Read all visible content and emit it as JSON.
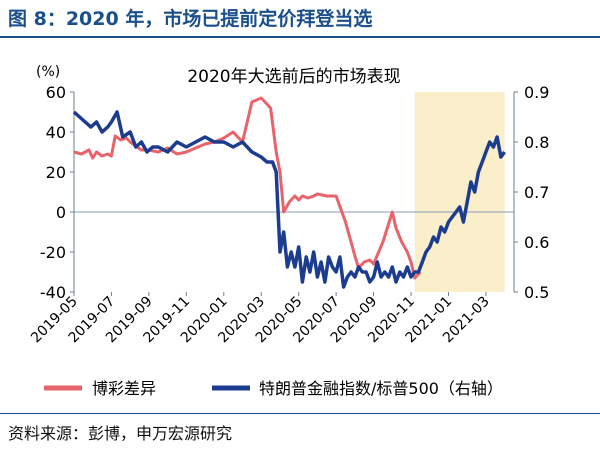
{
  "figure": {
    "title": "图 8：2020 年，市场已提前定价拜登当选",
    "source": "资料来源：彭博，申万宏源研究"
  },
  "colors": {
    "series1": "#e8646a",
    "series2": "#1c3d8f",
    "highlight": "#fbeecb",
    "title": "#1a4f8c"
  },
  "chart_data": {
    "type": "line",
    "title": "2020年大选前后的市场表现",
    "y_left_unit": "(%)",
    "y_left_range": [
      -40,
      60
    ],
    "y_left_ticks": [
      "60",
      "40",
      "20",
      "0",
      "-20",
      "-40"
    ],
    "y_right_range": [
      0.5,
      0.9
    ],
    "y_right_ticks": [
      "0.9",
      "0.8",
      "0.7",
      "0.6",
      "0.5"
    ],
    "x_range": [
      0,
      23.5
    ],
    "x_tick_labels": [
      "2019-05",
      "2019-07",
      "2019-09",
      "2019-11",
      "2020-01",
      "2020-03",
      "2020-05",
      "2020-07",
      "2020-09",
      "2020-11",
      "2021-01",
      "2021-03"
    ],
    "highlight_region": {
      "from": 18.2,
      "to": 23.0,
      "label": ""
    },
    "legend_position": "bottom",
    "series": [
      {
        "name": "博彩差异",
        "axis": "left",
        "x": [
          0,
          0.4,
          0.8,
          1.0,
          1.2,
          1.5,
          1.8,
          2.0,
          2.2,
          2.5,
          2.8,
          3.0,
          3.3,
          3.6,
          4.0,
          4.5,
          5.0,
          5.5,
          6.0,
          6.5,
          7.0,
          7.5,
          8.0,
          8.5,
          9.0,
          9.5,
          10.0,
          10.5,
          10.8,
          11.0,
          11.2,
          11.5,
          11.8,
          12.0,
          12.2,
          12.5,
          12.8,
          13.0,
          13.5,
          14.0,
          14.5,
          15.0,
          15.2,
          15.5,
          15.8,
          16.0,
          16.5,
          17.0,
          17.2,
          17.5,
          17.8,
          18.0,
          18.2,
          18.5
        ],
        "values": [
          30,
          29,
          31,
          27,
          30,
          28,
          29,
          28,
          38,
          36,
          37,
          35,
          33,
          31,
          31,
          30,
          32,
          29,
          30,
          32,
          34,
          35,
          37,
          40,
          35,
          55,
          57,
          52,
          30,
          20,
          0,
          5,
          8,
          6,
          8,
          7,
          8,
          9,
          8,
          8,
          -5,
          -22,
          -28,
          -25,
          -24,
          -26,
          -15,
          0,
          -8,
          -15,
          -20,
          -25,
          -33,
          -30
        ]
      },
      {
        "name": "特朗普金融指数/标普500（右轴）",
        "axis": "right",
        "x": [
          0,
          0.3,
          0.6,
          0.9,
          1.2,
          1.5,
          1.8,
          2.0,
          2.3,
          2.6,
          3.0,
          3.3,
          3.6,
          3.9,
          4.2,
          4.5,
          5.0,
          5.5,
          6.0,
          6.5,
          7.0,
          7.5,
          8.0,
          8.5,
          9.0,
          9.5,
          10.0,
          10.3,
          10.6,
          10.8,
          11.0,
          11.2,
          11.4,
          11.6,
          11.8,
          12.0,
          12.2,
          12.4,
          12.6,
          12.8,
          13.0,
          13.2,
          13.4,
          13.6,
          13.8,
          14.0,
          14.2,
          14.4,
          14.6,
          14.8,
          15.0,
          15.2,
          15.4,
          15.6,
          15.8,
          16.0,
          16.2,
          16.4,
          16.6,
          16.8,
          17.0,
          17.2,
          17.4,
          17.6,
          17.8,
          18.0,
          18.2,
          18.4,
          18.6,
          18.8,
          19.0,
          19.2,
          19.4,
          19.6,
          19.8,
          20.0,
          20.2,
          20.4,
          20.6,
          20.8,
          21.0,
          21.2,
          21.4,
          21.6,
          21.8,
          22.0,
          22.2,
          22.4,
          22.6,
          22.8,
          23.0
        ],
        "values": [
          0.86,
          0.85,
          0.84,
          0.83,
          0.84,
          0.82,
          0.83,
          0.84,
          0.86,
          0.81,
          0.82,
          0.79,
          0.8,
          0.78,
          0.79,
          0.79,
          0.78,
          0.8,
          0.79,
          0.8,
          0.81,
          0.8,
          0.8,
          0.79,
          0.8,
          0.78,
          0.77,
          0.76,
          0.76,
          0.74,
          0.58,
          0.62,
          0.55,
          0.58,
          0.55,
          0.59,
          0.52,
          0.57,
          0.54,
          0.58,
          0.53,
          0.56,
          0.52,
          0.57,
          0.55,
          0.54,
          0.57,
          0.51,
          0.53,
          0.54,
          0.53,
          0.55,
          0.54,
          0.54,
          0.52,
          0.53,
          0.56,
          0.53,
          0.54,
          0.53,
          0.55,
          0.52,
          0.54,
          0.53,
          0.55,
          0.53,
          0.54,
          0.54,
          0.56,
          0.58,
          0.59,
          0.61,
          0.6,
          0.63,
          0.62,
          0.64,
          0.65,
          0.66,
          0.67,
          0.64,
          0.68,
          0.72,
          0.7,
          0.74,
          0.76,
          0.78,
          0.8,
          0.79,
          0.81,
          0.77,
          0.78
        ]
      }
    ]
  }
}
